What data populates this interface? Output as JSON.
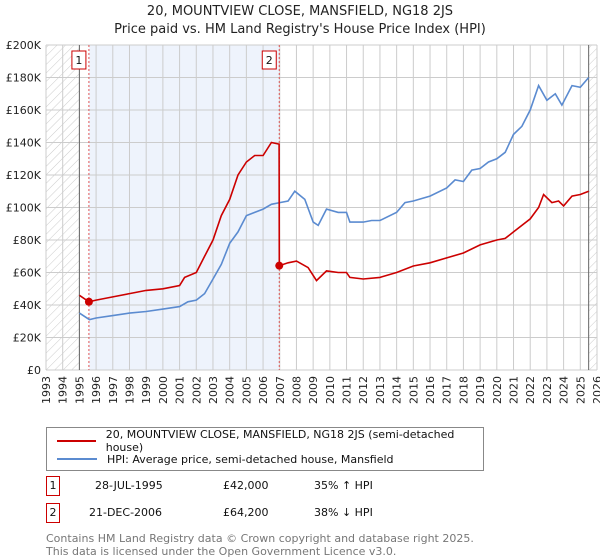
{
  "chart_data": {
    "type": "line",
    "title": "20, MOUNTVIEW CLOSE, MANSFIELD, NG18 2JS",
    "subtitle": "Price paid vs. HM Land Registry's House Price Index (HPI)",
    "xlim": [
      1993,
      2026
    ],
    "ylim": [
      0,
      200000
    ],
    "y_ticks": [
      0,
      20000,
      40000,
      60000,
      80000,
      100000,
      120000,
      140000,
      160000,
      180000,
      200000
    ],
    "y_tick_labels": [
      "£0",
      "£20K",
      "£40K",
      "£60K",
      "£80K",
      "£100K",
      "£120K",
      "£140K",
      "£160K",
      "£180K",
      "£200K"
    ],
    "x_ticks": [
      1993,
      1994,
      1995,
      1996,
      1997,
      1998,
      1999,
      2000,
      2001,
      2002,
      2003,
      2004,
      2005,
      2006,
      2007,
      2008,
      2009,
      2010,
      2011,
      2012,
      2013,
      2014,
      2015,
      2016,
      2017,
      2018,
      2019,
      2020,
      2021,
      2022,
      2023,
      2024,
      2025,
      2026
    ],
    "grid": true,
    "shaded_range": [
      1995.57,
      2006.97
    ],
    "hatched_ranges": [
      [
        1993,
        1995
      ],
      [
        2025.5,
        2026
      ]
    ],
    "series": [
      {
        "name": "20, MOUNTVIEW CLOSE, MANSFIELD, NG18 2JS (semi-detached house)",
        "color": "#cc0000",
        "x": [
          1995.0,
          1995.57,
          1996,
          1997,
          1998,
          1999,
          2000,
          2001,
          2001.3,
          2002,
          2002.5,
          2003,
          2003.5,
          2004,
          2004.5,
          2005,
          2005.5,
          2006,
          2006.5,
          2006.96,
          2006.97,
          2007.5,
          2008,
          2008.7,
          2009.2,
          2009.8,
          2010.5,
          2011,
          2011.2,
          2012,
          2013,
          2014,
          2015,
          2016,
          2017,
          2018,
          2019,
          2020,
          2020.5,
          2021,
          2022,
          2022.5,
          2022.8,
          2023.3,
          2023.7,
          2024,
          2024.5,
          2025,
          2025.5
        ],
        "y": [
          46000,
          42000,
          43000,
          45000,
          47000,
          49000,
          50000,
          52000,
          57000,
          60000,
          70000,
          80000,
          95000,
          105000,
          120000,
          128000,
          132000,
          132000,
          140000,
          139000,
          64200,
          66000,
          67000,
          63000,
          55000,
          61000,
          60000,
          60000,
          57000,
          56000,
          57000,
          60000,
          64000,
          66000,
          69000,
          72000,
          77000,
          80000,
          81000,
          85000,
          93000,
          100000,
          108000,
          103000,
          104000,
          101000,
          107000,
          108000,
          110000
        ]
      },
      {
        "name": "HPI: Average price, semi-detached house, Mansfield",
        "color": "#5b8bd0",
        "x": [
          1995.0,
          1995.6,
          1996,
          1997,
          1998,
          1999,
          2000,
          2001,
          2001.5,
          2002,
          2002.5,
          2003,
          2003.5,
          2004,
          2004.5,
          2005,
          2005.5,
          2006,
          2006.5,
          2007,
          2007.5,
          2007.9,
          2008.5,
          2009,
          2009.3,
          2009.8,
          2010.5,
          2011,
          2011.2,
          2012,
          2012.5,
          2013,
          2014,
          2014.5,
          2015,
          2016,
          2017,
          2017.5,
          2018,
          2018.5,
          2019,
          2019.5,
          2020,
          2020.5,
          2021,
          2021.5,
          2022,
          2022.5,
          2023,
          2023.5,
          2023.9,
          2024.5,
          2025,
          2025.5
        ],
        "y": [
          35000,
          31000,
          32000,
          33500,
          35000,
          36000,
          37500,
          39000,
          42000,
          43000,
          47000,
          56000,
          65000,
          78000,
          85000,
          95000,
          97000,
          99000,
          102000,
          103000,
          104000,
          110000,
          105000,
          91000,
          89000,
          99000,
          97000,
          97000,
          91000,
          91000,
          92000,
          92000,
          97000,
          103000,
          104000,
          107000,
          112000,
          117000,
          116000,
          123000,
          124000,
          128000,
          130000,
          134000,
          145000,
          150000,
          160000,
          175000,
          166000,
          170000,
          163000,
          175000,
          174000,
          180000
        ]
      }
    ],
    "sales": [
      {
        "label": "1",
        "x": 1995.57,
        "y": 42000,
        "date": "28-JUL-1995",
        "price": "£42,000",
        "hpi": "35% ↑ HPI"
      },
      {
        "label": "2",
        "x": 2006.97,
        "y": 64200,
        "date": "21-DEC-2006",
        "price": "£64,200",
        "hpi": "38% ↓ HPI"
      }
    ]
  },
  "legend": {
    "red": "20, MOUNTVIEW CLOSE, MANSFIELD, NG18 2JS (semi-detached house)",
    "blue": "HPI: Average price, semi-detached house, Mansfield"
  },
  "footer": {
    "line1": "Contains HM Land Registry data © Crown copyright and database right 2025.",
    "line2": "This data is licensed under the Open Government Licence v3.0."
  }
}
